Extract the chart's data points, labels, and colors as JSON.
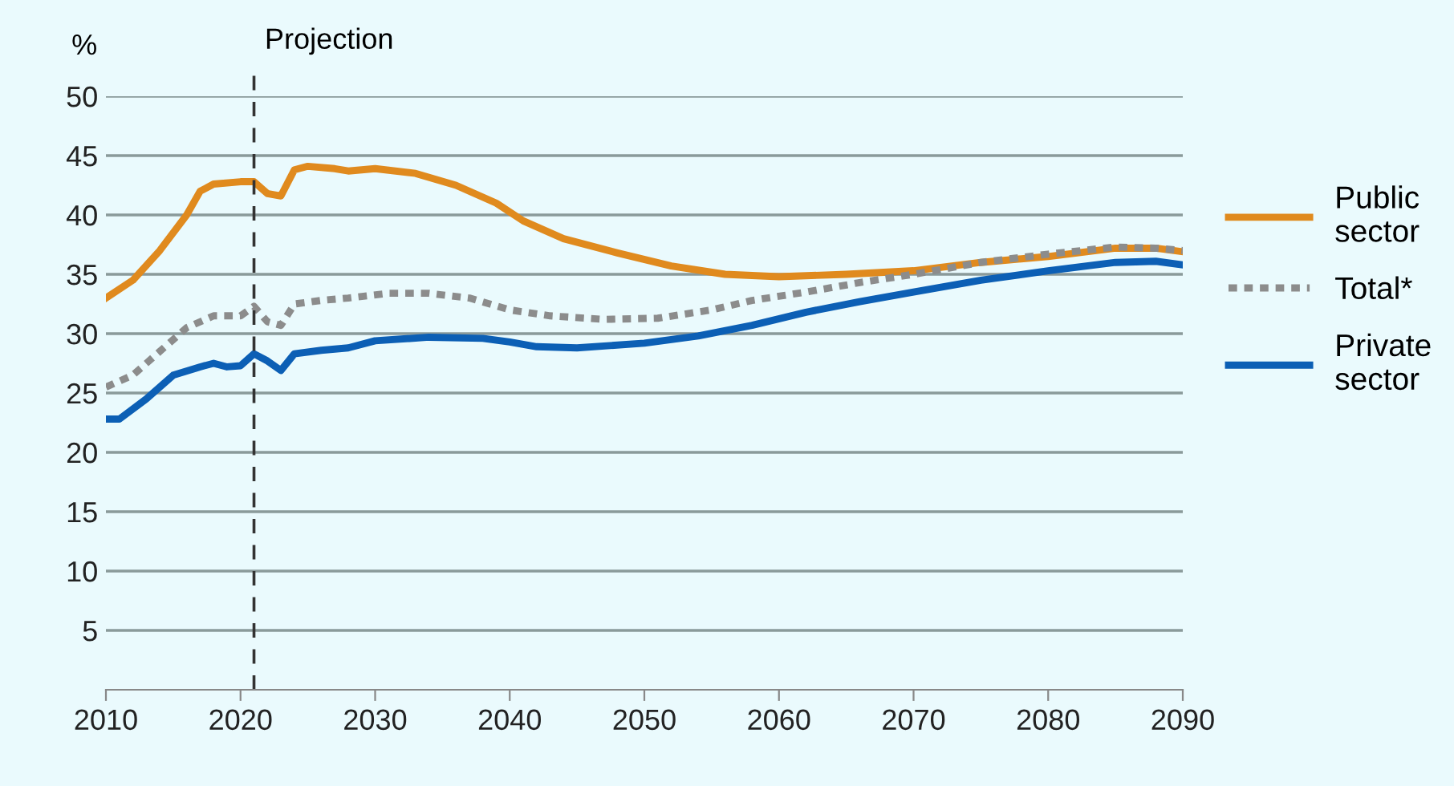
{
  "chart_data": {
    "type": "line",
    "ylabel": "%",
    "xlim": [
      2010,
      2090
    ],
    "xticks": [
      2010,
      2020,
      2030,
      2040,
      2050,
      2060,
      2070,
      2080,
      2090
    ],
    "ylim": [
      0,
      50
    ],
    "yticks": [
      5,
      10,
      15,
      20,
      25,
      30,
      35,
      40,
      45,
      50
    ],
    "grid": "y",
    "legend": "right",
    "ref_lines": [
      {
        "axis": "x",
        "value": 2021,
        "label": "Projection",
        "color": "#333333",
        "line_style": "dashed"
      }
    ],
    "series": [
      {
        "name": "Public sector",
        "color": "#e08a1e",
        "line_style": "solid",
        "x": [
          2010,
          2012,
          2014,
          2016,
          2017,
          2018,
          2020,
          2021,
          2022,
          2023,
          2024,
          2025,
          2027,
          2028,
          2030,
          2033,
          2036,
          2039,
          2041,
          2044,
          2048,
          2052,
          2056,
          2060,
          2065,
          2070,
          2075,
          2080,
          2085,
          2088,
          2090
        ],
        "values": [
          33,
          34.5,
          37,
          40,
          42,
          42.6,
          42.8,
          42.8,
          41.8,
          41.6,
          43.8,
          44.1,
          43.9,
          43.7,
          43.9,
          43.5,
          42.5,
          41,
          39.5,
          38,
          36.8,
          35.7,
          35,
          34.8,
          35,
          35.3,
          36,
          36.5,
          37.2,
          37.2,
          36.9
        ]
      },
      {
        "name": "Total*",
        "color": "#8c8c8c",
        "line_style": "dotted",
        "x": [
          2010,
          2012,
          2014,
          2016,
          2018,
          2020,
          2021,
          2022,
          2023,
          2024,
          2026,
          2028,
          2031,
          2034,
          2037,
          2040,
          2043,
          2047,
          2051,
          2055,
          2058,
          2062,
          2066,
          2070,
          2075,
          2080,
          2085,
          2088,
          2090
        ],
        "values": [
          25.5,
          26.5,
          28.5,
          30.5,
          31.5,
          31.5,
          32.3,
          31,
          30.7,
          32.5,
          32.8,
          33,
          33.4,
          33.4,
          33,
          32,
          31.5,
          31.2,
          31.3,
          32,
          32.8,
          33.5,
          34.3,
          35,
          36,
          36.7,
          37.3,
          37.2,
          37
        ]
      },
      {
        "name": "Private sector",
        "color": "#0c5fb5",
        "line_style": "solid",
        "x": [
          2010,
          2011,
          2013,
          2015,
          2017,
          2018,
          2019,
          2020,
          2021,
          2022,
          2023,
          2024,
          2026,
          2028,
          2030,
          2034,
          2038,
          2040,
          2042,
          2045,
          2050,
          2054,
          2058,
          2062,
          2066,
          2070,
          2075,
          2080,
          2085,
          2088,
          2090
        ],
        "values": [
          22.8,
          22.8,
          24.5,
          26.5,
          27.2,
          27.5,
          27.2,
          27.3,
          28.3,
          27.7,
          26.9,
          28.3,
          28.6,
          28.8,
          29.4,
          29.7,
          29.6,
          29.3,
          28.9,
          28.8,
          29.2,
          29.8,
          30.7,
          31.8,
          32.7,
          33.5,
          34.5,
          35.3,
          36,
          36.1,
          35.8
        ]
      }
    ]
  }
}
